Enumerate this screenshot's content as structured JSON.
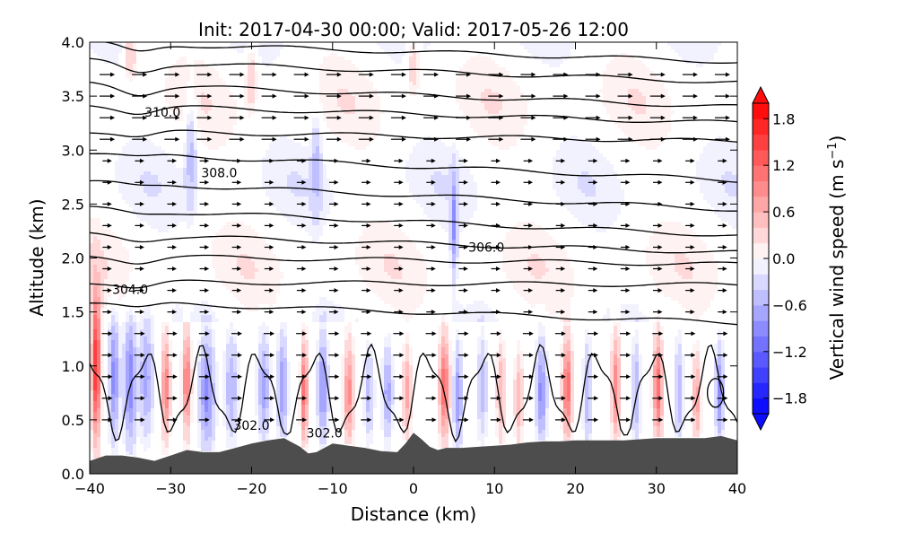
{
  "chart_data": {
    "type": "heatmap",
    "title": "Init: 2017-04-30 00:00; Valid: 2017-05-26 12:00",
    "xlabel": "Distance (km)",
    "ylabel": "Altitude (km)",
    "xlim": [
      -40,
      40
    ],
    "ylim": [
      0,
      4
    ],
    "x_ticks": [
      -40,
      -30,
      -20,
      -10,
      0,
      10,
      20,
      30,
      40
    ],
    "x_tick_labels": [
      "−40",
      "−30",
      "−20",
      "−10",
      "0",
      "10",
      "20",
      "30",
      "40"
    ],
    "y_ticks": [
      0,
      0.5,
      1,
      1.5,
      2,
      2.5,
      3,
      3.5,
      4
    ],
    "y_tick_labels": [
      "0.0",
      "0.5",
      "1.0",
      "1.5",
      "2.0",
      "2.5",
      "3.0",
      "3.5",
      "4.0"
    ],
    "grid": false,
    "colorbar": {
      "label_main": "Vertical wind speed (m s",
      "label_exp": "−1",
      "label_close": ")",
      "vmin": -2.0,
      "vmax": 2.0,
      "levels": 20,
      "extend": "both",
      "colormap": "bwr",
      "ticks": [
        -1.8,
        -1.2,
        -0.6,
        0.0,
        0.6,
        1.2,
        1.8
      ],
      "tick_labels": [
        "−1.8",
        "−1.2",
        "−0.6",
        "0.0",
        "0.6",
        "1.2",
        "1.8"
      ]
    },
    "terrain": {
      "color": "#4d4d4d",
      "x": [
        -40,
        -38,
        -36,
        -34,
        -32,
        -30,
        -28,
        -26,
        -24,
        -22,
        -20,
        -18,
        -16,
        -14,
        -13,
        -12,
        -10,
        -8,
        -6,
        -4,
        -2,
        -1,
        0,
        1,
        2,
        3,
        4,
        6,
        8,
        10,
        12,
        14,
        16,
        18,
        20,
        22,
        24,
        26,
        28,
        30,
        32,
        34,
        36,
        38,
        40
      ],
      "y": [
        0.12,
        0.17,
        0.17,
        0.15,
        0.12,
        0.17,
        0.22,
        0.2,
        0.2,
        0.24,
        0.28,
        0.31,
        0.33,
        0.25,
        0.19,
        0.2,
        0.28,
        0.26,
        0.24,
        0.21,
        0.2,
        0.28,
        0.38,
        0.32,
        0.25,
        0.22,
        0.24,
        0.24,
        0.25,
        0.26,
        0.27,
        0.29,
        0.3,
        0.3,
        0.31,
        0.31,
        0.31,
        0.31,
        0.32,
        0.33,
        0.33,
        0.33,
        0.33,
        0.35,
        0.31
      ]
    },
    "contour_labels": [
      {
        "text": "310.0",
        "x": -31,
        "y": 3.35
      },
      {
        "text": "308.0",
        "x": -24,
        "y": 2.79
      },
      {
        "text": "306.0",
        "x": 9,
        "y": 2.1
      },
      {
        "text": "304.0",
        "x": -35,
        "y": 1.71
      },
      {
        "text": "302.0",
        "x": -20,
        "y": 0.45
      },
      {
        "text": "302.0",
        "x": -11,
        "y": 0.38
      }
    ]
  }
}
